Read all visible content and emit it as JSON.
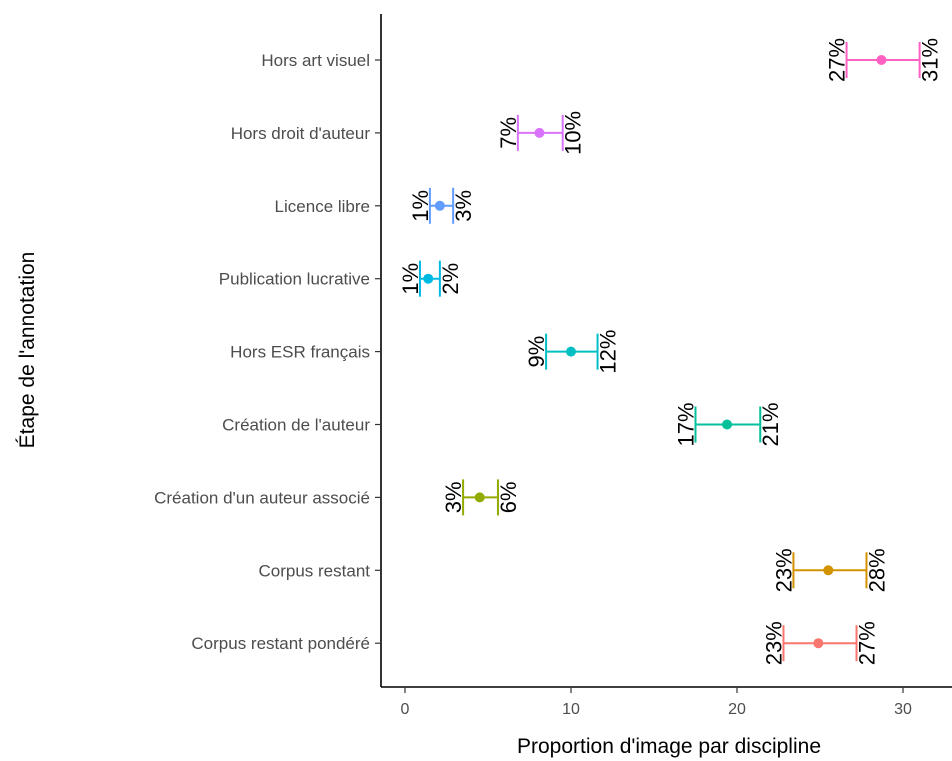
{
  "chart_data": {
    "type": "errorbar",
    "xlabel": "Proportion d'image par discipline",
    "ylabel": "Étape de l'annotation",
    "xlim": [
      -1.5,
      33
    ],
    "xticks": [
      0,
      10,
      20,
      30
    ],
    "grid": false,
    "legend": "none",
    "rows": [
      {
        "label": "Hors art visuel",
        "value": 28.7,
        "low": 26.6,
        "high": 31.0,
        "low_label": "27%",
        "high_label": "31%",
        "color": "#FF61C3"
      },
      {
        "label": "Hors droit d'auteur",
        "value": 8.1,
        "low": 6.8,
        "high": 9.5,
        "low_label": "7%",
        "high_label": "10%",
        "color": "#DB72FB"
      },
      {
        "label": "Licence libre",
        "value": 2.1,
        "low": 1.5,
        "high": 2.9,
        "low_label": "1%",
        "high_label": "3%",
        "color": "#619CFF"
      },
      {
        "label": "Publication lucrative",
        "value": 1.4,
        "low": 0.9,
        "high": 2.1,
        "low_label": "1%",
        "high_label": "2%",
        "color": "#00B9E3"
      },
      {
        "label": "Hors ESR français",
        "value": 10.0,
        "low": 8.5,
        "high": 11.6,
        "low_label": "9%",
        "high_label": "12%",
        "color": "#00BFC4"
      },
      {
        "label": "Création de l'auteur",
        "value": 19.4,
        "low": 17.5,
        "high": 21.4,
        "low_label": "17%",
        "high_label": "21%",
        "color": "#00C19A"
      },
      {
        "label": "Création d'un auteur associé",
        "value": 4.5,
        "low": 3.5,
        "high": 5.6,
        "low_label": "3%",
        "high_label": "6%",
        "color": "#93AA00"
      },
      {
        "label": "Corpus restant",
        "value": 25.5,
        "low": 23.4,
        "high": 27.8,
        "low_label": "23%",
        "high_label": "28%",
        "color": "#D39200"
      },
      {
        "label": "Corpus restant pondéré",
        "value": 24.9,
        "low": 22.8,
        "high": 27.2,
        "low_label": "23%",
        "high_label": "27%",
        "color": "#F8766D"
      }
    ]
  }
}
